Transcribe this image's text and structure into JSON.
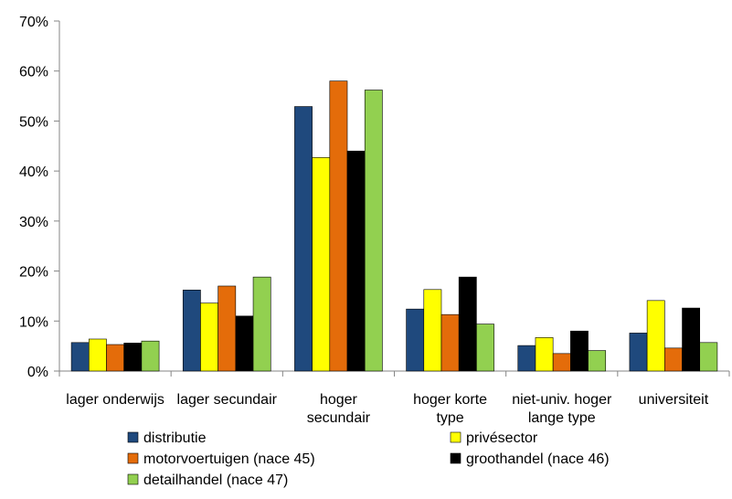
{
  "chart_data": {
    "type": "bar",
    "title": "",
    "xlabel": "",
    "ylabel": "",
    "ylim": [
      0,
      70
    ],
    "y_ticks": [
      "0%",
      "10%",
      "20%",
      "30%",
      "40%",
      "50%",
      "60%",
      "70%"
    ],
    "grid": false,
    "legend_position": "bottom",
    "categories": [
      [
        "lager onderwijs"
      ],
      [
        "lager secundair"
      ],
      [
        "hoger",
        "secundair"
      ],
      [
        "hoger korte",
        "type"
      ],
      [
        "niet-univ. hoger",
        "lange type"
      ],
      [
        "universiteit"
      ]
    ],
    "series": [
      {
        "name": "distributie",
        "color": "#1F497D",
        "values": [
          5.7,
          16.2,
          52.9,
          12.4,
          5.1,
          7.6
        ]
      },
      {
        "name": "privésector",
        "color": "#FFFF00",
        "values": [
          6.4,
          13.6,
          42.7,
          16.3,
          6.7,
          14.1
        ]
      },
      {
        "name": "motorvoertuigen (nace 45)",
        "color": "#E46C0A",
        "values": [
          5.3,
          17.0,
          58.0,
          11.3,
          3.5,
          4.6
        ]
      },
      {
        "name": "groothandel (nace 46)",
        "color": "#000000",
        "values": [
          5.6,
          11.0,
          44.0,
          18.8,
          8.0,
          12.6
        ]
      },
      {
        "name": "detailhandel (nace 47)",
        "color": "#92D050",
        "values": [
          6.0,
          18.8,
          56.2,
          9.4,
          4.1,
          5.7
        ]
      }
    ]
  }
}
